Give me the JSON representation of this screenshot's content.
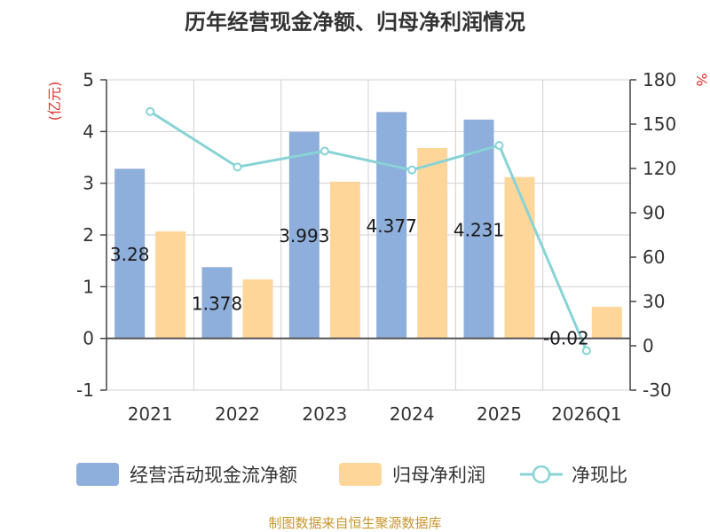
{
  "chart_data": {
    "type": "bar",
    "title": "历年经营现金净额、归母净利润情况",
    "categories": [
      "2021",
      "2022",
      "2023",
      "2024",
      "2025",
      "2026Q1"
    ],
    "ylabel_left": "(亿元)",
    "ylabel_right": "%",
    "ylim_left": [
      -1,
      5
    ],
    "yticks_left": [
      "5",
      "4",
      "3",
      "2",
      "1",
      "0",
      "-1"
    ],
    "ylim_right": [
      -30,
      180
    ],
    "yticks_right": [
      "180",
      "150",
      "120",
      "90",
      "60",
      "30",
      "0",
      "-30"
    ],
    "series": [
      {
        "name": "经营活动现金流净额",
        "kind": "bar",
        "color": "#8eaedb",
        "values": [
          3.28,
          1.378,
          3.993,
          4.377,
          4.231,
          -0.02
        ],
        "labels": [
          "3.28",
          "1.378",
          "3.993",
          "4.377",
          "4.231",
          "-0.02"
        ]
      },
      {
        "name": "归母净利润",
        "kind": "bar",
        "color": "#ffd699",
        "values": [
          2.07,
          1.14,
          3.03,
          3.68,
          3.12,
          0.61
        ]
      },
      {
        "name": "净现比",
        "kind": "line",
        "axis": "right",
        "color": "#88d3d6",
        "values": [
          158.5,
          121,
          131.8,
          119,
          135.6,
          -3.3
        ]
      }
    ],
    "source": "制图数据来自恒生聚源数据库"
  }
}
